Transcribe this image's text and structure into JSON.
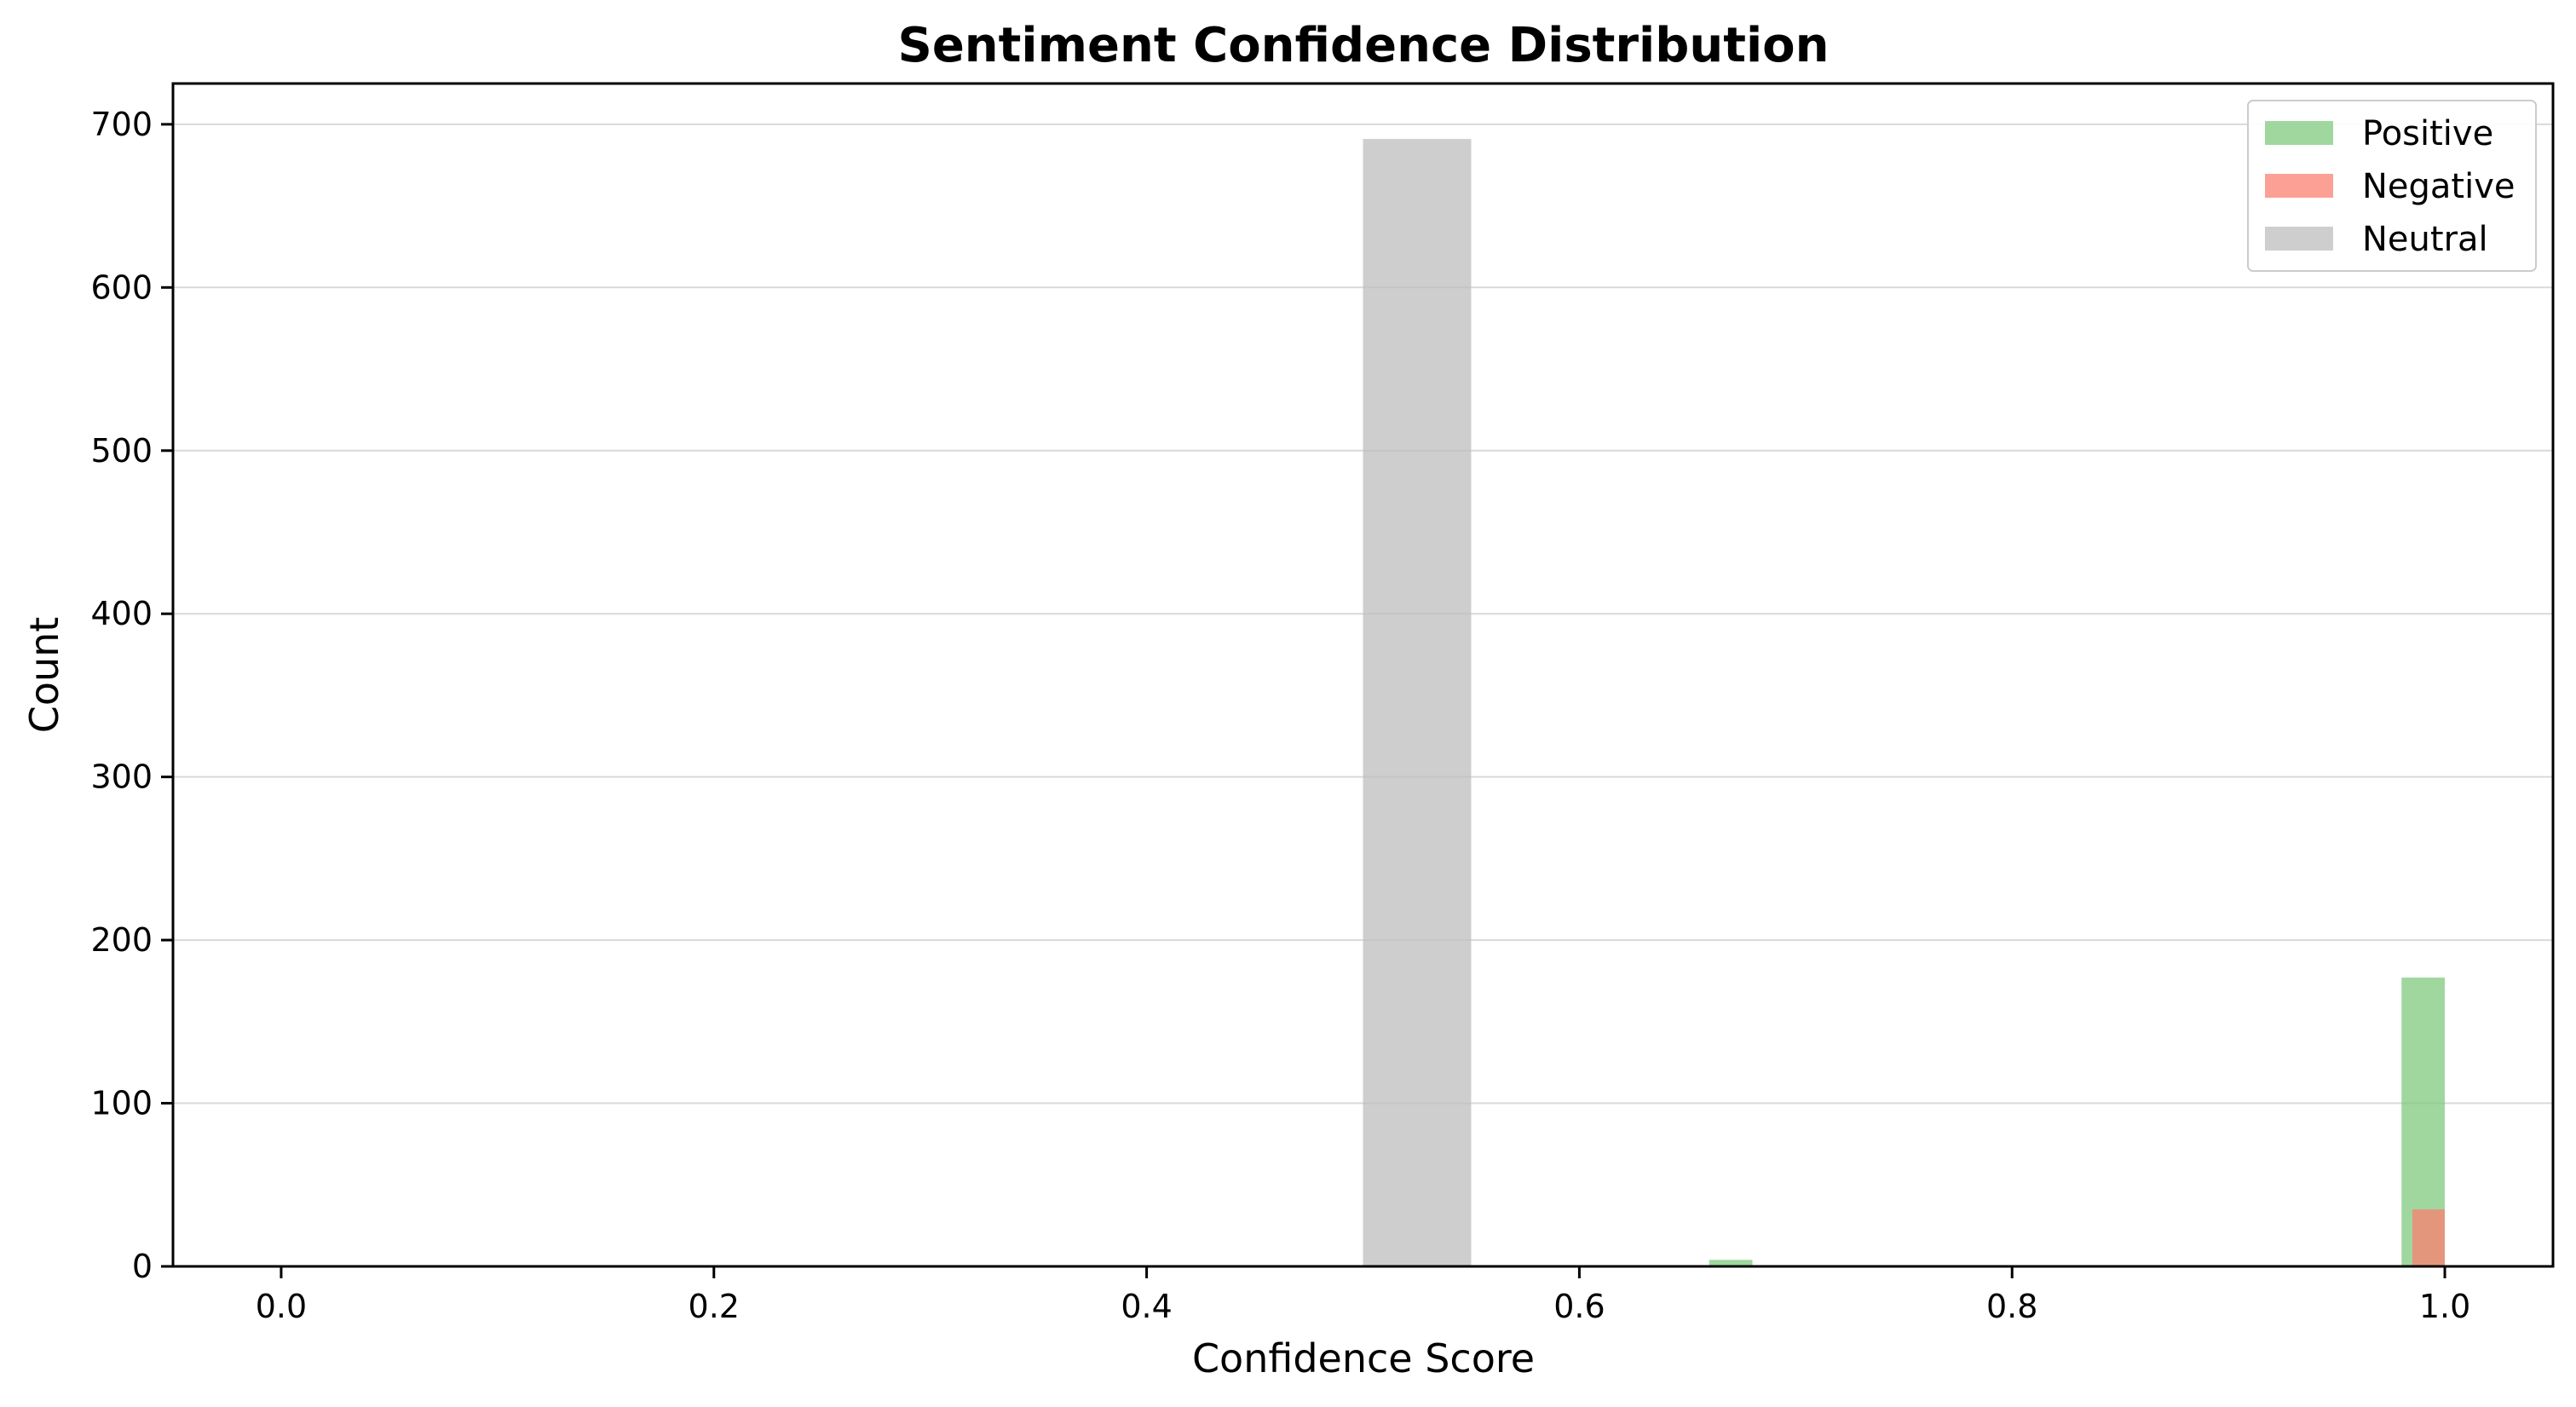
{
  "chart_data": {
    "type": "bar",
    "title": "Sentiment Confidence Distribution",
    "xlabel": "Confidence Score",
    "ylabel": "Count",
    "xlim": [
      -0.05,
      1.05
    ],
    "ylim": [
      0,
      725
    ],
    "x_ticks": [
      "0.0",
      "0.2",
      "0.4",
      "0.6",
      "0.8",
      "1.0"
    ],
    "x_tick_values": [
      0.0,
      0.2,
      0.4,
      0.6,
      0.8,
      1.0
    ],
    "y_ticks": [
      "0",
      "100",
      "200",
      "300",
      "400",
      "500",
      "600",
      "700"
    ],
    "y_tick_values": [
      0,
      100,
      200,
      300,
      400,
      500,
      600,
      700
    ],
    "grid": "y-axis",
    "legend_position": "top-right",
    "series": [
      {
        "name": "Positive",
        "color": "#7fc97f",
        "opacity": 0.75,
        "bins": [
          {
            "x0": 0.66,
            "x1": 0.68,
            "count": 4
          },
          {
            "x0": 0.98,
            "x1": 1.0,
            "count": 177
          }
        ]
      },
      {
        "name": "Negative",
        "color": "#fb8072",
        "opacity": 0.75,
        "bins": [
          {
            "x0": 0.985,
            "x1": 1.0,
            "count": 35
          }
        ]
      },
      {
        "name": "Neutral",
        "color": "#bdbdbd",
        "opacity": 0.75,
        "bins": [
          {
            "x0": 0.5,
            "x1": 0.55,
            "count": 691
          }
        ]
      }
    ]
  }
}
